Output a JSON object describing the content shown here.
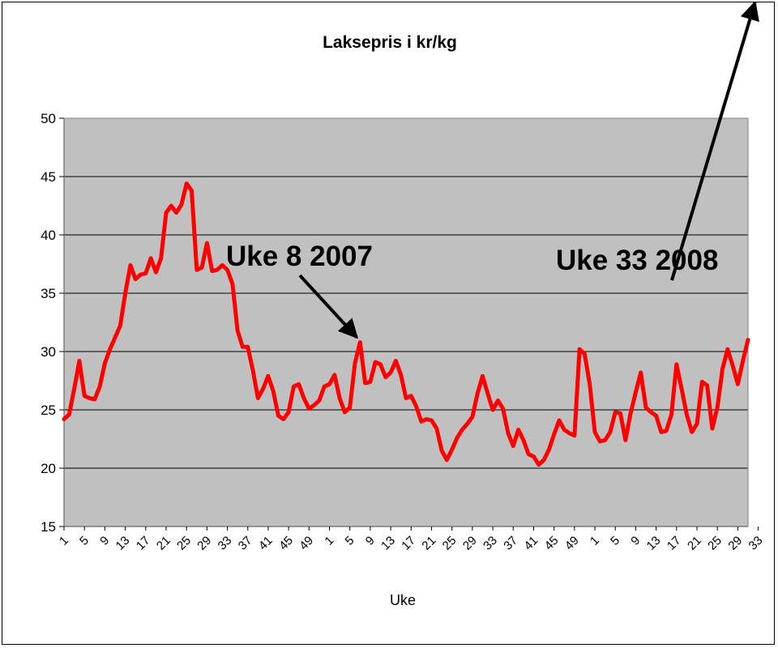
{
  "chart_data": {
    "type": "line",
    "title": "Laksepris i kr/kg",
    "xlabel": "Uke",
    "ylabel": "",
    "ylim": [
      15,
      50
    ],
    "yticks": [
      15,
      20,
      25,
      30,
      35,
      40,
      45,
      50
    ],
    "grid": true,
    "legend": "none",
    "colors": {
      "line": "#ff0000",
      "plot_bg": "#c0c0c0",
      "grid": "#000000"
    },
    "x_tick_labels": [
      "1",
      "5",
      "9",
      "13",
      "17",
      "21",
      "25",
      "29",
      "33",
      "37",
      "41",
      "45",
      "49",
      "1",
      "5",
      "9",
      "13",
      "17",
      "21",
      "25",
      "29",
      "33",
      "37",
      "41",
      "45",
      "49",
      "1",
      "5",
      "9",
      "13",
      "17",
      "21",
      "25",
      "29",
      "33"
    ],
    "series": [
      {
        "values": [
          24.2,
          24.6,
          26.8,
          29.2,
          26.2,
          26.0,
          25.9,
          27.0,
          29.0,
          30.2,
          31.2,
          32.2,
          35.0,
          37.4,
          36.2,
          36.6,
          36.7,
          38.0,
          36.8,
          38.0,
          41.9,
          42.5,
          41.9,
          42.6,
          44.4,
          43.8,
          37.0,
          37.2,
          39.3,
          36.9,
          37.0,
          37.4,
          37.0,
          35.8,
          31.8,
          30.4,
          30.4,
          28.4,
          26.0,
          26.8,
          27.9,
          26.6,
          24.5,
          24.2,
          24.8,
          27.0,
          27.2,
          26.0,
          25.1,
          25.4,
          25.8,
          27.0,
          27.2,
          28.0,
          26.0,
          24.8,
          25.2,
          29.0,
          30.8,
          27.3,
          27.4,
          29.1,
          28.9,
          27.8,
          28.2,
          29.2,
          28.0,
          26.0,
          26.2,
          25.3,
          24.0,
          24.2,
          24.1,
          23.4,
          21.5,
          20.7,
          21.6,
          22.6,
          23.3,
          23.8,
          24.4,
          26.4,
          27.9,
          26.4,
          25.0,
          25.8,
          25.1,
          23.0,
          21.9,
          23.3,
          22.4,
          21.2,
          21.0,
          20.3,
          20.7,
          21.6,
          22.9,
          24.1,
          23.3,
          23.0,
          22.8,
          30.2,
          29.8,
          27.2,
          23.1,
          22.3,
          22.4,
          23.1,
          24.8,
          24.7,
          22.4,
          24.7,
          26.5,
          28.2,
          25.2,
          24.8,
          24.5,
          23.1,
          23.2,
          24.6,
          28.9,
          26.8,
          24.6,
          23.1,
          23.8,
          27.4,
          27.1,
          23.4,
          25.2,
          28.5,
          30.2,
          28.8,
          27.2,
          29.2,
          31.0
        ]
      }
    ],
    "annotations": [
      {
        "text": "Uke 8 2007",
        "point_index": 58
      },
      {
        "text": "Uke 33 2008",
        "point_index": 136
      }
    ]
  }
}
